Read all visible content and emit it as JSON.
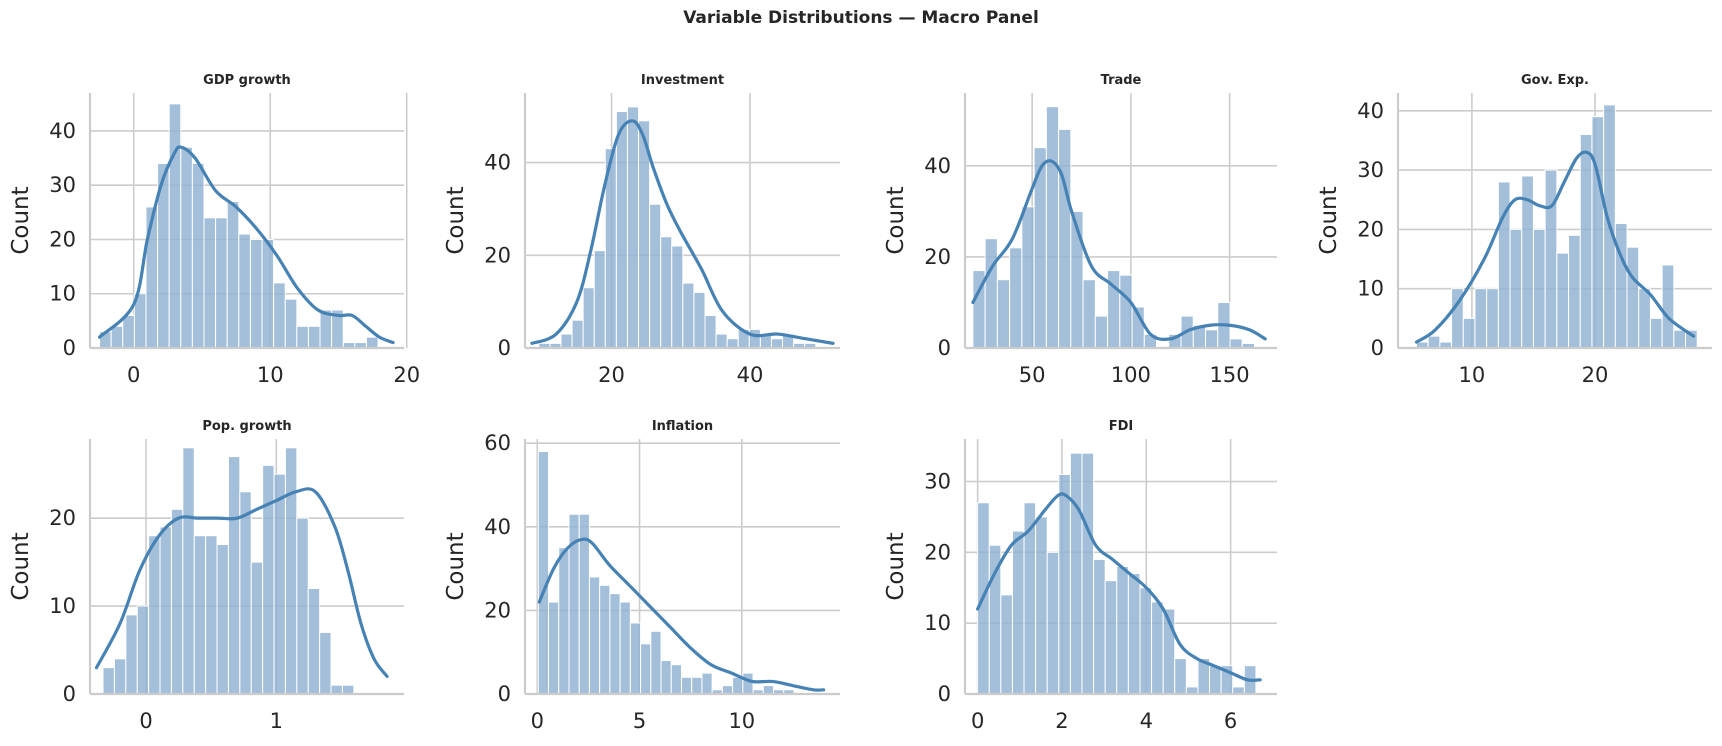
{
  "title": "Variable Distributions — Macro Panel",
  "colors": {
    "bar": "#8fb1d2",
    "kde": "#4682b4",
    "grid": "#cccccc",
    "text": "#262626"
  },
  "chart_data": [
    {
      "type": "bar",
      "title": "GDP growth",
      "ylabel": "Count",
      "xlim": [
        -3.2,
        19.8
      ],
      "ylim": [
        0,
        47
      ],
      "xticks": [
        0,
        10,
        20
      ],
      "yticks": [
        0,
        10,
        20,
        30,
        40
      ],
      "bin_start": -2.5,
      "bin_width": 0.85,
      "values": [
        3,
        4,
        6,
        10,
        26,
        34,
        45,
        37,
        34,
        24,
        24,
        27,
        21,
        20,
        20,
        12,
        9,
        4,
        4,
        7,
        7,
        1,
        1,
        2
      ],
      "kde_x": [
        -2.5,
        0,
        1,
        2,
        3,
        3.5,
        4.5,
        6,
        7.5,
        9,
        10.5,
        12,
        13.5,
        15,
        16,
        17,
        18,
        19
      ],
      "kde_y": [
        2,
        8,
        20,
        30,
        36,
        37,
        35,
        29,
        26,
        22,
        17,
        11,
        7,
        6,
        6,
        4,
        2,
        1
      ]
    },
    {
      "type": "bar",
      "title": "Investment",
      "ylabel": "Count",
      "xlim": [
        7.5,
        53
      ],
      "ylim": [
        0,
        55
      ],
      "xticks": [
        20,
        40
      ],
      "yticks": [
        0,
        20,
        40
      ],
      "bin_start": 9.5,
      "bin_width": 1.6,
      "values": [
        1,
        1,
        3,
        6,
        13,
        21,
        43,
        51,
        52,
        49,
        31,
        24,
        22,
        14,
        12,
        7,
        3,
        2,
        4,
        4,
        3,
        2,
        3,
        1,
        1
      ],
      "kde_x": [
        8.5,
        12,
        15,
        17,
        19,
        21,
        23,
        24.5,
        26,
        28,
        30,
        33,
        36,
        40,
        44,
        48,
        52
      ],
      "kde_y": [
        1,
        3,
        10,
        21,
        35,
        46,
        49,
        46,
        39,
        31,
        25,
        17,
        8,
        3,
        3,
        2,
        1
      ]
    },
    {
      "type": "bar",
      "title": "Trade",
      "ylabel": "Count",
      "xlim": [
        16,
        174
      ],
      "ylim": [
        0,
        56
      ],
      "xticks": [
        50,
        100,
        150
      ],
      "yticks": [
        0,
        20,
        40
      ],
      "bin_start": 20,
      "bin_width": 6.2,
      "values": [
        17,
        24,
        15,
        22,
        31,
        44,
        53,
        48,
        30,
        15,
        7,
        17,
        16,
        9,
        3,
        0,
        3,
        7,
        5,
        4,
        10,
        2,
        1
      ],
      "kde_x": [
        20,
        30,
        40,
        50,
        55,
        60,
        65,
        70,
        80,
        90,
        100,
        110,
        120,
        130,
        140,
        150,
        160,
        168
      ],
      "kde_y": [
        10,
        18,
        24,
        35,
        40,
        41,
        38,
        30,
        18,
        14,
        10,
        3,
        2,
        4,
        5,
        5,
        4,
        2
      ]
    },
    {
      "type": "bar",
      "title": "Gov. Exp.",
      "ylabel": "Count",
      "xlim": [
        4,
        29.5
      ],
      "ylim": [
        0,
        43
      ],
      "xticks": [
        10,
        20
      ],
      "yticks": [
        0,
        10,
        20,
        30,
        40
      ],
      "bin_start": 5.5,
      "bin_width": 0.95,
      "values": [
        1,
        2,
        1,
        10,
        5,
        10,
        10,
        28,
        20,
        29,
        20,
        30,
        16,
        19,
        36,
        39,
        41,
        21,
        17,
        10,
        5,
        14,
        3,
        3
      ],
      "kde_x": [
        5.5,
        7,
        9,
        11,
        12.5,
        13.5,
        14.5,
        15.5,
        16.5,
        17.5,
        18.5,
        19.3,
        20,
        21,
        22,
        23,
        24.5,
        26,
        28
      ],
      "kde_y": [
        1,
        3,
        8,
        15,
        22,
        25,
        25,
        24,
        24,
        28,
        32,
        33,
        31,
        22,
        16,
        12,
        9,
        5,
        2
      ]
    },
    {
      "type": "bar",
      "title": "Pop. growth",
      "ylabel": "Count",
      "xlim": [
        -0.43,
        1.98
      ],
      "ylim": [
        0,
        29
      ],
      "xticks": [
        0,
        1
      ],
      "yticks": [
        0,
        10,
        20
      ],
      "bin_start": -0.33,
      "bin_width": 0.0875,
      "values": [
        3,
        4,
        9,
        10,
        18,
        19,
        21,
        28,
        18,
        18,
        17,
        27,
        23,
        15,
        26,
        25,
        28,
        20,
        12,
        7,
        1,
        1
      ],
      "kde_x": [
        -0.38,
        -0.2,
        -0.05,
        0.1,
        0.25,
        0.4,
        0.55,
        0.7,
        0.85,
        1.0,
        1.15,
        1.3,
        1.45,
        1.55,
        1.65,
        1.75,
        1.85
      ],
      "kde_y": [
        3,
        8,
        14,
        18,
        20,
        20,
        20,
        20,
        21,
        22,
        23,
        23,
        19,
        14,
        8,
        4,
        2
      ]
    },
    {
      "type": "bar",
      "title": "Inflation",
      "ylabel": "Count",
      "xlim": [
        -0.6,
        14.8
      ],
      "ylim": [
        0,
        61
      ],
      "xticks": [
        0,
        5,
        10
      ],
      "yticks": [
        0,
        20,
        40,
        60
      ],
      "bin_start": 0.05,
      "bin_width": 0.5,
      "values": [
        58,
        22,
        35,
        43,
        43,
        28,
        26,
        24,
        22,
        17,
        12,
        15,
        8,
        7,
        4,
        4,
        5,
        1,
        2,
        4,
        5,
        1,
        2,
        1,
        1
      ],
      "kde_x": [
        0.1,
        0.8,
        1.5,
        2.2,
        2.7,
        3.5,
        4.5,
        5.5,
        6.5,
        7.5,
        8.5,
        9.5,
        10.5,
        11.5,
        12.5,
        13.5,
        14
      ],
      "kde_y": [
        22,
        30,
        35,
        37,
        36,
        31,
        26,
        21,
        16,
        11,
        7,
        5,
        3,
        3,
        2,
        1,
        1
      ]
    },
    {
      "type": "bar",
      "title": "FDI",
      "ylabel": "Count",
      "xlim": [
        -0.3,
        7.1
      ],
      "ylim": [
        0,
        36
      ],
      "xticks": [
        0,
        2,
        4,
        6
      ],
      "yticks": [
        0,
        10,
        20,
        30
      ],
      "bin_start": 0,
      "bin_width": 0.275,
      "values": [
        27,
        21,
        14,
        23,
        27,
        25,
        20,
        31,
        34,
        34,
        19,
        16,
        18,
        17,
        15,
        13,
        12,
        5,
        1,
        5,
        4,
        4,
        1,
        4
      ],
      "kde_x": [
        0,
        0.4,
        0.8,
        1.2,
        1.6,
        1.9,
        2.1,
        2.4,
        2.8,
        3.2,
        3.6,
        4.0,
        4.4,
        4.8,
        5.2,
        5.6,
        6.0,
        6.4,
        6.7
      ],
      "kde_y": [
        12,
        17,
        21,
        23,
        26,
        28,
        28,
        26,
        21,
        19,
        17,
        15,
        12,
        7,
        5,
        4,
        3,
        2,
        2
      ]
    }
  ]
}
